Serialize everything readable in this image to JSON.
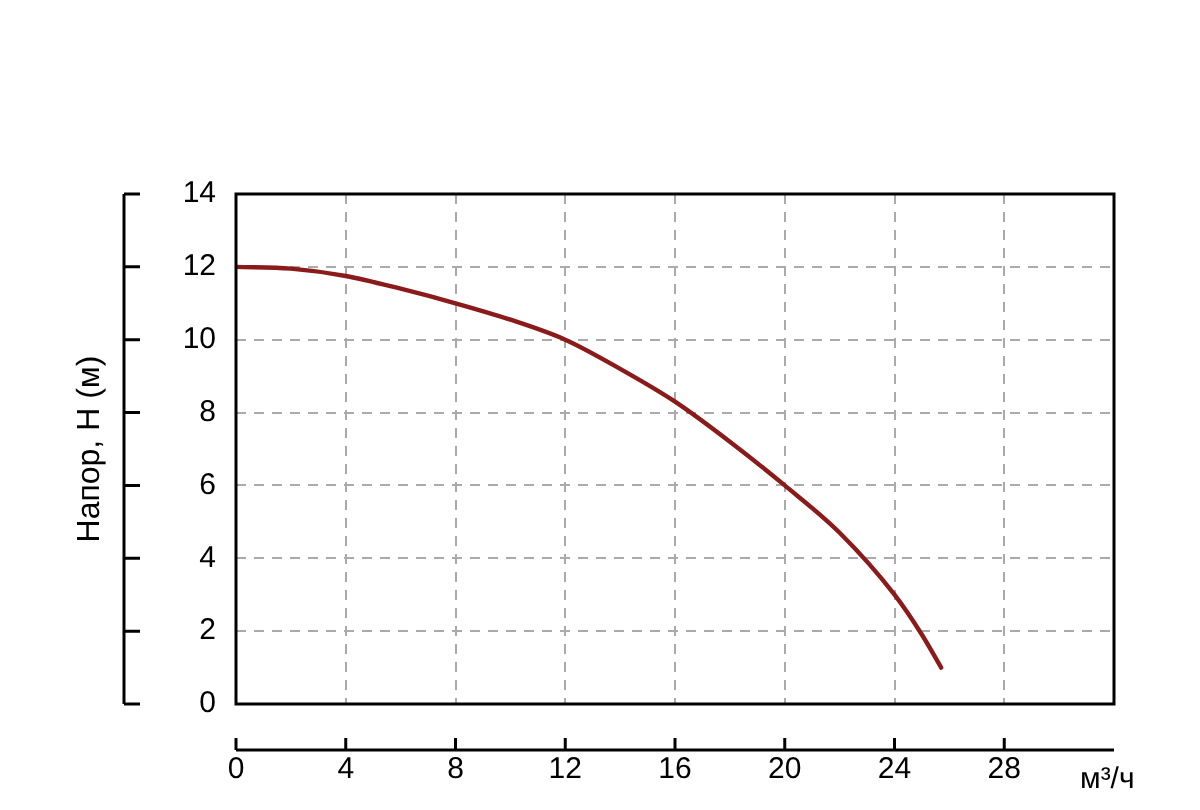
{
  "chart_data": {
    "type": "line",
    "xlabel": "м³/ч",
    "ylabel": "Напор, H (м)",
    "x": [
      0,
      2,
      4,
      6,
      8,
      10,
      12,
      14,
      16,
      18,
      20,
      22,
      24,
      25,
      25.7
    ],
    "series": [
      {
        "color": "#8b1a1a",
        "values": [
          12,
          11.95,
          11.75,
          11.4,
          11,
          10.55,
          10,
          9.2,
          8.3,
          7.2,
          6,
          4.7,
          3,
          1.9,
          1
        ]
      }
    ],
    "xlim": [
      0,
      32
    ],
    "xticks": [
      0,
      4,
      8,
      12,
      16,
      20,
      24,
      28
    ],
    "ylim": [
      0,
      14
    ],
    "yticks": [
      0,
      2,
      4,
      6,
      8,
      10,
      12,
      14
    ],
    "grid": true,
    "legend": false,
    "marker": "none",
    "line_style": "solid"
  }
}
